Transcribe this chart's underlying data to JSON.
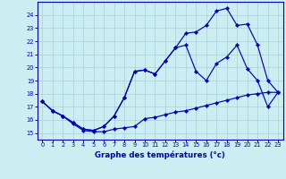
{
  "title": "Graphe des températures (°c)",
  "bg_color": "#cceef2",
  "line_color": "#0000bb",
  "grid_color": "#aad4dc",
  "xlim": [
    -0.5,
    23.5
  ],
  "ylim": [
    14.5,
    25.0
  ],
  "xticks": [
    0,
    1,
    2,
    3,
    4,
    5,
    6,
    7,
    8,
    9,
    10,
    11,
    12,
    13,
    14,
    15,
    16,
    17,
    18,
    19,
    20,
    21,
    22,
    23
  ],
  "yticks": [
    15,
    16,
    17,
    18,
    19,
    20,
    21,
    22,
    23,
    24
  ],
  "line1_x": [
    0,
    1,
    2,
    3,
    4,
    5,
    6,
    7,
    8,
    9,
    10,
    11,
    12,
    13,
    14,
    15,
    16,
    17,
    18,
    19,
    20,
    21,
    22,
    23
  ],
  "line1_y": [
    17.4,
    16.7,
    16.3,
    15.7,
    15.2,
    15.1,
    15.1,
    15.3,
    15.4,
    15.5,
    16.1,
    16.2,
    16.4,
    16.6,
    16.7,
    16.9,
    17.1,
    17.3,
    17.5,
    17.7,
    17.9,
    18.0,
    18.1,
    18.1
  ],
  "line2_x": [
    0,
    1,
    2,
    3,
    4,
    5,
    6,
    7,
    8,
    9,
    10,
    11,
    12,
    13,
    14,
    15,
    16,
    17,
    18,
    19,
    20,
    21,
    22,
    23
  ],
  "line2_y": [
    17.4,
    16.7,
    16.3,
    15.8,
    15.3,
    15.2,
    15.5,
    16.3,
    17.7,
    19.7,
    19.8,
    19.5,
    20.5,
    21.5,
    21.7,
    19.7,
    19.0,
    20.3,
    20.8,
    21.7,
    19.9,
    19.0,
    17.0,
    18.1
  ],
  "line3_x": [
    0,
    1,
    2,
    3,
    4,
    5,
    6,
    7,
    8,
    9,
    10,
    11,
    12,
    13,
    14,
    15,
    16,
    17,
    18,
    19,
    20,
    21,
    22,
    23
  ],
  "line3_y": [
    17.4,
    16.7,
    16.3,
    15.8,
    15.3,
    15.2,
    15.5,
    16.3,
    17.7,
    19.7,
    19.8,
    19.5,
    20.5,
    21.5,
    22.6,
    22.7,
    23.2,
    24.3,
    24.5,
    23.2,
    23.3,
    21.7,
    19.0,
    18.1
  ]
}
